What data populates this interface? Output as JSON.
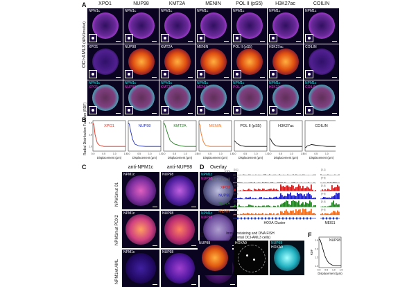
{
  "panel_letters": {
    "a": "A",
    "b": "B",
    "c": "C",
    "d": "D",
    "e": "E",
    "f": "F"
  },
  "panelA": {
    "columns": [
      "XPO1",
      "NUP98",
      "KMT2A",
      "MENIN",
      "POL II (pS5)",
      "H3K27ac",
      "COILIN"
    ],
    "row_group_label": "OCI-AML3",
    "row_group_sublabel": "(NPM1mut/wt)",
    "rows": [
      {
        "labels": [
          "NPM1c",
          "NPM1c",
          "NPM1c",
          "NPM1c",
          "NPM1c",
          "NPM1c",
          "NPM1c"
        ],
        "labels2": [
          "",
          "",
          "",
          "",
          "",
          "",
          ""
        ]
      },
      {
        "labels": [
          "XPO1",
          "NUP98",
          "KMT2A",
          "MENIN",
          "POL II (pS5)",
          "H3K27ac",
          "COILIN"
        ],
        "labels2": [
          "",
          "",
          "",
          "",
          "",
          "",
          ""
        ]
      },
      {
        "labels": [
          "NPM1c",
          "NPM1c",
          "NPM1c",
          "NPM1c",
          "NPM1c",
          "NPM1c",
          "NPM1c"
        ],
        "labels2": [
          "XPO1",
          "NUP98",
          "KMT2A",
          "MENIN",
          "POL II",
          "H3K27ac",
          "COILIN"
        ]
      }
    ],
    "colors": {
      "npm1c": "#b050e0",
      "fire": "#ff9a20",
      "cyan": "#30e0e0",
      "magenta": "#e040d0"
    }
  },
  "panelB": {
    "ylabel": "Radial Distribution Function (RDF)",
    "xlabel": "Displacement (μm)",
    "xticks": [
      "0.0",
      "0.5",
      "1.0",
      "1.5"
    ],
    "yticks": [
      "1.0",
      "1.5",
      "2.0"
    ],
    "titles": [
      "XPO1",
      "NUP98",
      "KMT2A",
      "MENIN",
      "POL II (pS5)",
      "H3K27ac",
      "COILIN"
    ],
    "title_colors": [
      "#e03020",
      "#2030c0",
      "#208020",
      "#f07020",
      "#111111",
      "#111111",
      "#111111"
    ]
  },
  "panelC": {
    "columns": [
      "anti-NPM1c",
      "anti-NUP98",
      "Overlay"
    ],
    "rows": [
      {
        "label": "NPM1mut 01",
        "t1": "NPM1c",
        "t2": "NUP98",
        "t3a": "NPM1c",
        "t3b": "NUP98"
      },
      {
        "label": "NPM1mut PDX2",
        "t1": "NPM1c",
        "t2": "NUP98",
        "t3a": "NPM1c",
        "t3b": "NUP98"
      },
      {
        "label": "NPM1wt AML",
        "t1": "NPM1c",
        "t2": "NUP98",
        "t3a": "NPM1c",
        "t3b": "NUP98"
      }
    ]
  },
  "panelD": {
    "tracks": [
      {
        "name": "IgG",
        "scale": "[0-1]",
        "color": "#777777"
      },
      {
        "name": "H3K27me3",
        "scale": "[0-3]",
        "color": "#777777"
      },
      {
        "name": "XPO1",
        "scale": "[0-4]",
        "color": "#d02020"
      },
      {
        "name": "NUP98",
        "scale": "[0-3]",
        "color": "#2020c0"
      },
      {
        "name": "KMT2A",
        "scale": "[0-4]",
        "color": "#208020"
      },
      {
        "name": "MENIN",
        "scale": "[0-3]",
        "color": "#f07020"
      }
    ],
    "loci": [
      "HOXA Cluster",
      "MEIS1"
    ]
  },
  "panelE": {
    "title": "Immunostaining and DNA FISH",
    "subtitle": "(parental OCI-AML3 cells)",
    "tiles": [
      "NUP98",
      "HOXA9",
      "NUP98\nHOXA9"
    ],
    "tile_a": "NUP98",
    "tile_b": "HOXA9",
    "tile_c1": "NUP98",
    "tile_c2": "HOXA9"
  },
  "panelF": {
    "title": "NUP98",
    "ylabel": "RDF",
    "xlabel": "Displacement (μm)",
    "xticks": [
      "0.0",
      "0.5",
      "1.0",
      "1.5"
    ],
    "yticks": [
      "1.0",
      "1.5",
      "2.0",
      "2.5"
    ],
    "chart_data": {
      "type": "line",
      "x": [
        0.0,
        0.1,
        0.2,
        0.3,
        0.4,
        0.5,
        0.6,
        0.7,
        0.8,
        0.9,
        1.0,
        1.2,
        1.5
      ],
      "series": [
        {
          "values": [
            2.6,
            2.5,
            2.2,
            1.9,
            1.6,
            1.4,
            1.25,
            1.15,
            1.1,
            1.05,
            1.02,
            1.0,
            1.0
          ]
        }
      ],
      "xlim": [
        0,
        1.5
      ],
      "ylim": [
        0.9,
        2.7
      ]
    }
  },
  "chart_data": [
    {
      "type": "line",
      "title": "XPO1",
      "x": [
        0,
        0.05,
        0.1,
        0.2,
        0.3,
        0.5,
        0.8,
        1.0,
        1.5
      ],
      "series": [
        {
          "values": [
            2.0,
            1.9,
            1.5,
            1.15,
            1.05,
            1.0,
            1.0,
            1.0,
            1.0
          ]
        }
      ],
      "xlim": [
        0,
        1.5
      ],
      "ylim": [
        0.8,
        2.1
      ]
    },
    {
      "type": "line",
      "title": "NUP98",
      "x": [
        0,
        0.05,
        0.1,
        0.2,
        0.3,
        0.5,
        0.8,
        1.0,
        1.5
      ],
      "series": [
        {
          "values": [
            2.0,
            1.95,
            1.7,
            1.3,
            1.1,
            1.02,
            1.0,
            1.0,
            1.0
          ]
        }
      ],
      "xlim": [
        0,
        1.5
      ],
      "ylim": [
        0.8,
        2.1
      ]
    },
    {
      "type": "line",
      "title": "KMT2A",
      "x": [
        0,
        0.05,
        0.1,
        0.2,
        0.3,
        0.5,
        0.8,
        1.0,
        1.5
      ],
      "series": [
        {
          "values": [
            2.0,
            1.95,
            1.8,
            1.5,
            1.25,
            1.1,
            1.02,
            1.0,
            1.0
          ]
        }
      ],
      "xlim": [
        0,
        1.5
      ],
      "ylim": [
        0.8,
        2.1
      ]
    },
    {
      "type": "line",
      "title": "MENIN",
      "x": [
        0,
        0.05,
        0.1,
        0.2,
        0.3,
        0.5,
        0.8,
        1.0,
        1.5
      ],
      "series": [
        {
          "values": [
            2.0,
            1.9,
            1.55,
            1.2,
            1.05,
            1.0,
            1.0,
            1.0,
            1.0
          ]
        }
      ],
      "xlim": [
        0,
        1.5
      ],
      "ylim": [
        0.8,
        2.1
      ]
    },
    {
      "type": "line",
      "title": "POL II (pS5)",
      "x": [
        0,
        0.05,
        0.1,
        0.2,
        0.3,
        0.5,
        0.8,
        1.0,
        1.5
      ],
      "series": [
        {
          "values": [
            1.25,
            1.2,
            1.15,
            1.08,
            1.03,
            1.0,
            1.0,
            1.0,
            1.0
          ]
        }
      ],
      "xlim": [
        0,
        1.5
      ],
      "ylim": [
        0.8,
        2.1
      ]
    },
    {
      "type": "line",
      "title": "H3K27ac",
      "x": [
        0,
        0.05,
        0.1,
        0.2,
        0.3,
        0.5,
        0.8,
        1.0,
        1.5
      ],
      "series": [
        {
          "values": [
            1.35,
            1.3,
            1.2,
            1.08,
            1.02,
            1.0,
            1.0,
            1.0,
            1.0
          ]
        }
      ],
      "xlim": [
        0,
        1.5
      ],
      "ylim": [
        0.8,
        2.1
      ]
    },
    {
      "type": "line",
      "title": "COILIN",
      "x": [
        0,
        0.05,
        0.1,
        0.2,
        0.3,
        0.5,
        0.8,
        1.0,
        1.5
      ],
      "series": [
        {
          "values": [
            0.95,
            0.97,
            1.02,
            1.05,
            1.08,
            1.05,
            1.02,
            1.0,
            1.0
          ]
        }
      ],
      "xlim": [
        0,
        1.5
      ],
      "ylim": [
        0.8,
        2.1
      ]
    }
  ]
}
